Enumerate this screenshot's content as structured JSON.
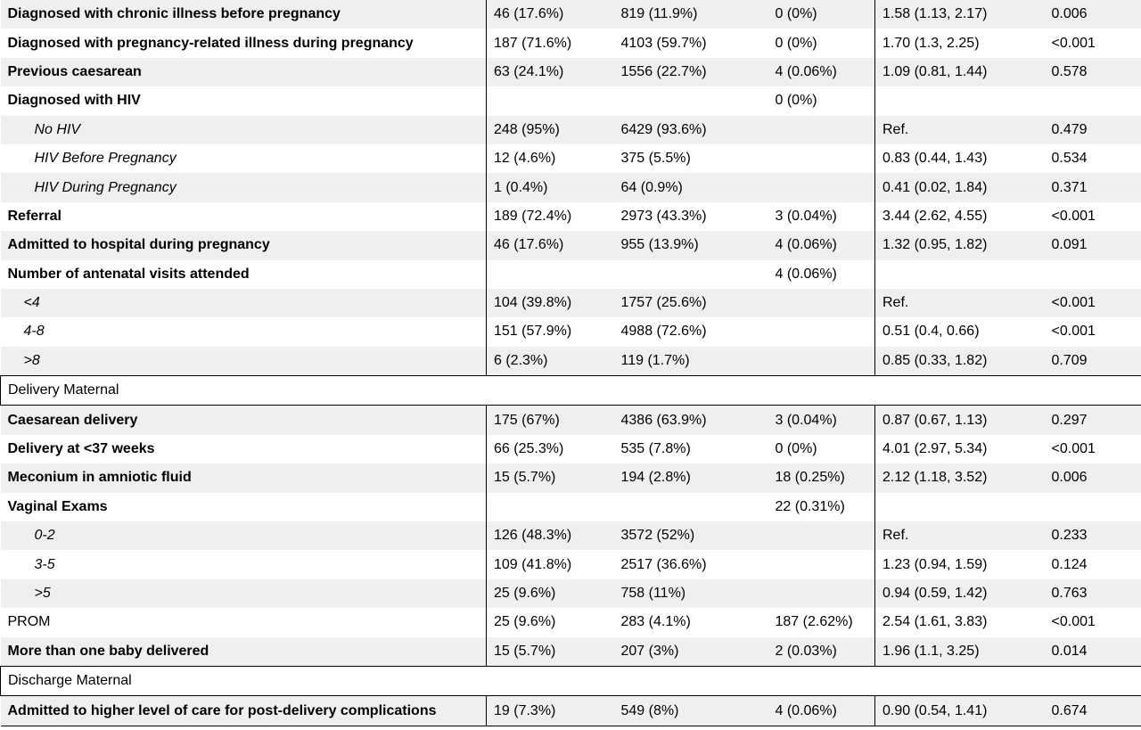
{
  "rows": [
    {
      "type": "data",
      "label": "Diagnosed with chronic illness before pregnancy",
      "style": "bold",
      "shade": true,
      "c1": "46 (17.6%)",
      "c2": "819 (11.9%)",
      "c3": "0 (0%)",
      "c4": "1.58 (1.13, 2.17)",
      "c5": "0.006"
    },
    {
      "type": "data",
      "label": "Diagnosed with pregnancy-related illness during pregnancy",
      "style": "bold",
      "shade": false,
      "c1": "187 (71.6%)",
      "c2": "4103 (59.7%)",
      "c3": "0 (0%)",
      "c4": "1.70 (1.3, 2.25)",
      "c5": "<0.001"
    },
    {
      "type": "data",
      "label": "Previous caesarean",
      "style": "bold",
      "shade": true,
      "c1": "63 (24.1%)",
      "c2": "1556 (22.7%)",
      "c3": "4 (0.06%)",
      "c4": "1.09 (0.81, 1.44)",
      "c5": "0.578"
    },
    {
      "type": "data",
      "label": "Diagnosed with HIV",
      "style": "bold",
      "shade": false,
      "c1": "",
      "c2": "",
      "c3": "0 (0%)",
      "c4": "",
      "c5": ""
    },
    {
      "type": "data",
      "label": "No HIV",
      "style": "ital1",
      "shade": true,
      "c1": "248 (95%)",
      "c2": "6429 (93.6%)",
      "c3": "",
      "c4": "Ref.",
      "c5": "0.479"
    },
    {
      "type": "data",
      "label": "HIV Before Pregnancy",
      "style": "ital1",
      "shade": false,
      "c1": "12 (4.6%)",
      "c2": "375 (5.5%)",
      "c3": "",
      "c4": "0.83 (0.44, 1.43)",
      "c5": "0.534"
    },
    {
      "type": "data",
      "label": "HIV During Pregnancy",
      "style": "ital1",
      "shade": true,
      "c1": "1 (0.4%)",
      "c2": "64 (0.9%)",
      "c3": "",
      "c4": "0.41 (0.02, 1.84)",
      "c5": "0.371"
    },
    {
      "type": "data",
      "label": "Referral",
      "style": "bold",
      "shade": false,
      "c1": "189 (72.4%)",
      "c2": "2973 (43.3%)",
      "c3": "3 (0.04%)",
      "c4": "3.44 (2.62, 4.55)",
      "c5": "<0.001"
    },
    {
      "type": "data",
      "label": "Admitted to hospital during pregnancy",
      "style": "bold",
      "shade": true,
      "c1": "46 (17.6%)",
      "c2": "955 (13.9%)",
      "c3": "4 (0.06%)",
      "c4": "1.32 (0.95, 1.82)",
      "c5": "0.091"
    },
    {
      "type": "data",
      "label": "Number of antenatal visits attended",
      "style": "bold",
      "shade": false,
      "c1": "",
      "c2": "",
      "c3": "4 (0.06%)",
      "c4": "",
      "c5": ""
    },
    {
      "type": "data",
      "label": "<4",
      "style": "ital2",
      "shade": true,
      "c1": "104 (39.8%)",
      "c2": "1757 (25.6%)",
      "c3": "",
      "c4": "Ref.",
      "c5": "<0.001"
    },
    {
      "type": "data",
      "label": "4-8",
      "style": "ital2",
      "shade": false,
      "c1": "151 (57.9%)",
      "c2": "4988 (72.6%)",
      "c3": "",
      "c4": "0.51 (0.4, 0.66)",
      "c5": "<0.001"
    },
    {
      "type": "data",
      "label": ">8",
      "style": "ital2",
      "shade": true,
      "c1": "6 (2.3%)",
      "c2": "119 (1.7%)",
      "c3": "",
      "c4": "0.85 (0.33, 1.82)",
      "c5": "0.709"
    },
    {
      "type": "section",
      "label": "Delivery Maternal"
    },
    {
      "type": "data",
      "label": "Caesarean delivery",
      "style": "bold",
      "shade": true,
      "c1": "175 (67%)",
      "c2": "4386 (63.9%)",
      "c3": "3 (0.04%)",
      "c4": "0.87 (0.67, 1.13)",
      "c5": "0.297"
    },
    {
      "type": "data",
      "label": "Delivery at <37 weeks",
      "style": "bold",
      "shade": false,
      "c1": "66 (25.3%)",
      "c2": "535 (7.8%)",
      "c3": "0 (0%)",
      "c4": "4.01 (2.97, 5.34)",
      "c5": "<0.001"
    },
    {
      "type": "data",
      "label": "Meconium in amniotic fluid",
      "style": "bold",
      "shade": true,
      "c1": "15 (5.7%)",
      "c2": "194 (2.8%)",
      "c3": "18 (0.25%)",
      "c4": "2.12 (1.18, 3.52)",
      "c5": "0.006"
    },
    {
      "type": "data",
      "label": "Vaginal Exams",
      "style": "bold",
      "shade": false,
      "c1": "",
      "c2": "",
      "c3": "22 (0.31%)",
      "c4": "",
      "c5": ""
    },
    {
      "type": "data",
      "label": "0-2",
      "style": "ital1",
      "shade": true,
      "c1": "126 (48.3%)",
      "c2": "3572 (52%)",
      "c3": "",
      "c4": "Ref.",
      "c5": "0.233"
    },
    {
      "type": "data",
      "label": "3-5",
      "style": "ital1",
      "shade": false,
      "c1": "109 (41.8%)",
      "c2": "2517 (36.6%)",
      "c3": "",
      "c4": "1.23 (0.94, 1.59)",
      "c5": "0.124"
    },
    {
      "type": "data",
      "label": ">5",
      "style": "ital1",
      "shade": true,
      "c1": "25 (9.6%)",
      "c2": "758 (11%)",
      "c3": "",
      "c4": "0.94 (0.59, 1.42)",
      "c5": "0.763"
    },
    {
      "type": "data",
      "label": "PROM",
      "style": "plain",
      "shade": false,
      "c1": "25 (9.6%)",
      "c2": "283 (4.1%)",
      "c3": "187 (2.62%)",
      "c4": "2.54 (1.61, 3.83)",
      "c5": "<0.001"
    },
    {
      "type": "data",
      "label": "More than one baby delivered",
      "style": "bold",
      "shade": true,
      "c1": "15 (5.7%)",
      "c2": "207 (3%)",
      "c3": "2 (0.03%)",
      "c4": "1.96 (1.1, 3.25)",
      "c5": "0.014"
    },
    {
      "type": "section",
      "label": "Discharge Maternal"
    },
    {
      "type": "data",
      "label": "Admitted to higher level of care for post-delivery complications",
      "style": "bold",
      "shade": true,
      "c1": "19 (7.3%)",
      "c2": "549 (8%)",
      "c3": "4 (0.06%)",
      "c4": "0.90 (0.54, 1.41)",
      "c5": "0.674"
    }
  ]
}
